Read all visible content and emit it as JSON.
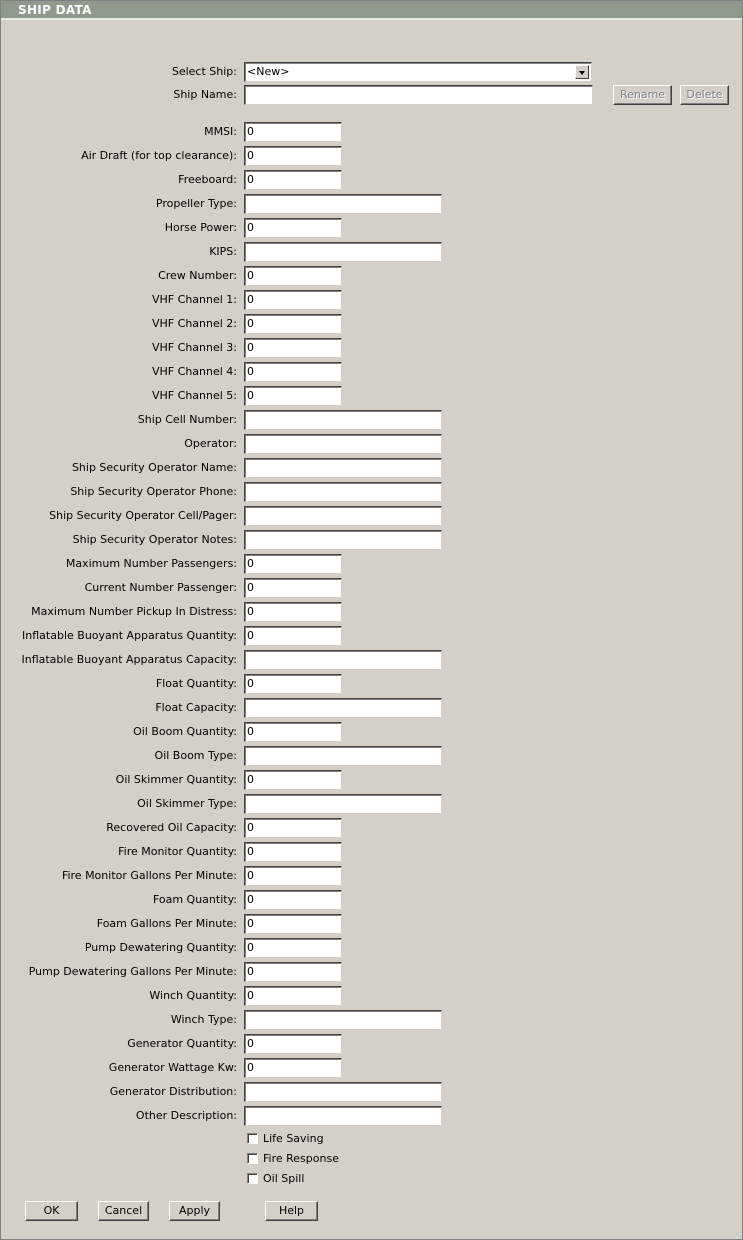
{
  "header": {
    "title": "SHIP DATA"
  },
  "select_ship": {
    "label": "Select Ship:",
    "value": "<New>"
  },
  "ship_name": {
    "label": "Ship Name:"
  },
  "top_buttons": [
    "Rename",
    "Delete"
  ],
  "fields": [
    {
      "label": "MMSI:",
      "value": 0
    },
    {
      "label": "Air Draft (for top clearance):",
      "value": 0
    },
    {
      "label": "Freeboard:",
      "value": 0
    },
    {
      "label": "Propeller Type:"
    },
    {
      "label": "Horse Power:",
      "value": 0
    },
    {
      "label": "KIPS:"
    },
    {
      "label": "Crew Number:",
      "value": 0
    },
    {
      "label": "VHF Channel 1:",
      "value": 0
    },
    {
      "label": "VHF Channel 2:",
      "value": 0
    },
    {
      "label": "VHF Channel 3:",
      "value": 0
    },
    {
      "label": "VHF Channel 4:",
      "value": 0
    },
    {
      "label": "VHF Channel 5:",
      "value": 0
    },
    {
      "label": "Ship Cell Number:"
    },
    {
      "label": "Operator:"
    },
    {
      "label": "Ship Security Operator Name:"
    },
    {
      "label": "Ship Security Operator Phone:"
    },
    {
      "label": "Ship Security Operator Cell/Pager:"
    },
    {
      "label": "Ship Security Operator Notes:"
    },
    {
      "label": "Maximum Number Passengers:",
      "value": 0
    },
    {
      "label": "Current Number Passenger:",
      "value": 0
    },
    {
      "label": "Maximum Number Pickup In Distress:",
      "value": 0
    },
    {
      "label": "Inflatable Buoyant Apparatus Quantity:",
      "value": 0
    },
    {
      "label": "Inflatable Buoyant Apparatus Capacity:"
    },
    {
      "label": "Float Quantity:",
      "value": 0
    },
    {
      "label": "Float Capacity:"
    },
    {
      "label": "Oil Boom Quantity:",
      "value": 0
    },
    {
      "label": "Oil Boom Type:"
    },
    {
      "label": "Oil Skimmer Quantity:",
      "value": 0
    },
    {
      "label": "Oil Skimmer Type:"
    },
    {
      "label": "Recovered Oil Capacity:",
      "value": 0
    },
    {
      "label": "Fire Monitor Quantity:",
      "value": 0
    },
    {
      "label": "Fire Monitor Gallons Per Minute:",
      "value": 0
    },
    {
      "label": "Foam Quantity:",
      "value": 0
    },
    {
      "label": "Foam Gallons Per Minute:",
      "value": 0
    },
    {
      "label": "Pump Dewatering Quantity:",
      "value": 0
    },
    {
      "label": "Pump Dewatering Gallons Per Minute:",
      "value": 0
    },
    {
      "label": "Winch Quantity:",
      "value": 0
    },
    {
      "label": "Winch Type:"
    },
    {
      "label": "Generator Quantity:",
      "value": 0
    },
    {
      "label": "Generator Wattage Kw:",
      "value": 0
    },
    {
      "label": "Generator Distribution:"
    },
    {
      "label": "Other Description:"
    }
  ],
  "checkboxes": [
    "Life Saving",
    "Fire Response",
    "Oil Spill"
  ],
  "buttons": [
    "OK",
    "Cancel",
    "Apply",
    "Help"
  ]
}
